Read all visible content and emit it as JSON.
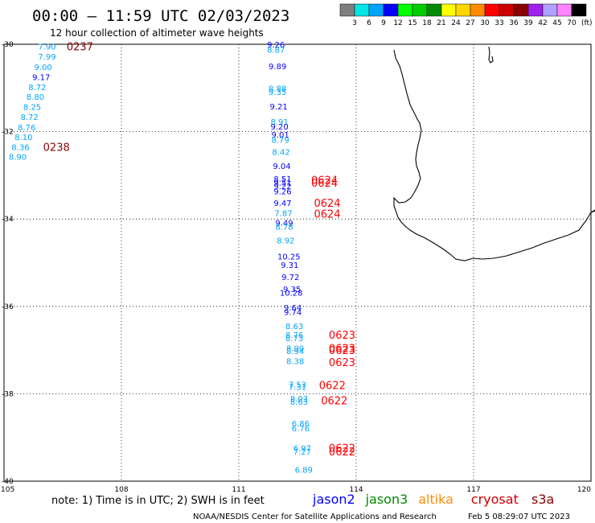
{
  "header": {
    "title": "00:00 – 11:59 UTC 02/03/2023",
    "subtitle": "12 hour collection of altimeter wave heights"
  },
  "color_scale": {
    "colors": [
      "#7f7f7f",
      "#00e5e5",
      "#00a5ff",
      "#0000ff",
      "#00ff00",
      "#00cd00",
      "#008b00",
      "#ffff00",
      "#ffd700",
      "#ff8c00",
      "#ff0000",
      "#cd0000",
      "#8b0000",
      "#a020f0",
      "#b0a0ff",
      "#ff82ff",
      "#000000"
    ],
    "labels": [
      "3",
      "6",
      "9",
      "12",
      "15",
      "18",
      "21",
      "24",
      "27",
      "30",
      "33",
      "36",
      "39",
      "42",
      "45",
      "70"
    ],
    "unit": "(ft)"
  },
  "map": {
    "lat_labels": [
      "-30",
      "-32",
      "-34",
      "-36",
      "-38",
      "-40"
    ],
    "lon_labels": [
      "105",
      "108",
      "111",
      "114",
      "117",
      "120"
    ],
    "lat_values": [
      -30,
      -32,
      -34,
      -36,
      -38,
      -40
    ],
    "lon_values": [
      105,
      108,
      111,
      114,
      117,
      120
    ],
    "extent": {
      "lon_min": 105,
      "lon_max": 120,
      "lat_min": -40,
      "lat_max": -30
    },
    "coast_color": "#000000",
    "grid_color": "#000000"
  },
  "observations": [
    {
      "lon": 106.1,
      "lat": -30.05,
      "v": "7.90",
      "c": "#00a5ff"
    },
    {
      "lon": 106.1,
      "lat": -30.28,
      "v": "7.99",
      "c": "#00a5ff"
    },
    {
      "lon": 106.0,
      "lat": -30.52,
      "v": "9.00",
      "c": "#00a5ff"
    },
    {
      "lon": 105.95,
      "lat": -30.75,
      "v": "9.17",
      "c": "#0000ff"
    },
    {
      "lon": 105.85,
      "lat": -30.98,
      "v": "8.72",
      "c": "#00a5ff"
    },
    {
      "lon": 105.8,
      "lat": -31.2,
      "v": "8.80",
      "c": "#00a5ff"
    },
    {
      "lon": 105.72,
      "lat": -31.43,
      "v": "8.25",
      "c": "#00a5ff"
    },
    {
      "lon": 105.65,
      "lat": -31.66,
      "v": "8.72",
      "c": "#00a5ff"
    },
    {
      "lon": 105.58,
      "lat": -31.9,
      "v": "8.76",
      "c": "#00a5ff"
    },
    {
      "lon": 105.5,
      "lat": -32.12,
      "v": "8.10",
      "c": "#00a5ff"
    },
    {
      "lon": 105.42,
      "lat": -32.35,
      "v": "8.36",
      "c": "#00a5ff"
    },
    {
      "lon": 105.35,
      "lat": -32.57,
      "v": "8.90",
      "c": "#00a5ff"
    },
    {
      "lon": 111.95,
      "lat": -30.0,
      "v": "9.26",
      "c": "#0000ff"
    },
    {
      "lon": 111.95,
      "lat": -30.12,
      "v": "8.87",
      "c": "#00a5ff"
    },
    {
      "lon": 111.99,
      "lat": -30.5,
      "v": "9.89",
      "c": "#0000ff"
    },
    {
      "lon": 111.99,
      "lat": -31.0,
      "v": "8.88",
      "c": "#00a5ff"
    },
    {
      "lon": 111.99,
      "lat": -31.09,
      "v": "9.35",
      "c": "#00a5ff"
    },
    {
      "lon": 112.02,
      "lat": -31.42,
      "v": "9.21",
      "c": "#0000ff"
    },
    {
      "lon": 112.04,
      "lat": -31.77,
      "v": "8.91",
      "c": "#00a5ff"
    },
    {
      "lon": 112.04,
      "lat": -31.88,
      "v": "9.20",
      "c": "#0000ff"
    },
    {
      "lon": 112.06,
      "lat": -32.06,
      "v": "9.01",
      "c": "#0000ff"
    },
    {
      "lon": 112.06,
      "lat": -32.18,
      "v": "8.79",
      "c": "#00a5ff"
    },
    {
      "lon": 112.08,
      "lat": -32.46,
      "v": "8.42",
      "c": "#00a5ff"
    },
    {
      "lon": 112.1,
      "lat": -32.78,
      "v": "9.04",
      "c": "#0000ff"
    },
    {
      "lon": 112.12,
      "lat": -33.08,
      "v": "8.51",
      "c": "#0000ff"
    },
    {
      "lon": 112.12,
      "lat": -33.16,
      "v": "9.51",
      "c": "#0000ff"
    },
    {
      "lon": 112.12,
      "lat": -33.24,
      "v": "9.22",
      "c": "#0000ff"
    },
    {
      "lon": 112.12,
      "lat": -33.36,
      "v": "9.26",
      "c": "#0000ff"
    },
    {
      "lon": 112.12,
      "lat": -33.63,
      "v": "9.47",
      "c": "#0000ff"
    },
    {
      "lon": 112.14,
      "lat": -33.86,
      "v": "7.87",
      "c": "#00a5ff"
    },
    {
      "lon": 112.16,
      "lat": -34.08,
      "v": "9.49",
      "c": "#0000ff"
    },
    {
      "lon": 112.16,
      "lat": -34.17,
      "v": "8.78",
      "c": "#00a5ff"
    },
    {
      "lon": 112.2,
      "lat": -34.48,
      "v": "8.92",
      "c": "#00a5ff"
    },
    {
      "lon": 112.28,
      "lat": -34.85,
      "v": "10.25",
      "c": "#0000ff"
    },
    {
      "lon": 112.3,
      "lat": -35.05,
      "v": "9.31",
      "c": "#0000ff"
    },
    {
      "lon": 112.32,
      "lat": -35.32,
      "v": "9.72",
      "c": "#0000ff"
    },
    {
      "lon": 112.36,
      "lat": -35.6,
      "v": "9.35",
      "c": "#0000ff"
    },
    {
      "lon": 112.34,
      "lat": -35.68,
      "v": "10.28",
      "c": "#0000ff"
    },
    {
      "lon": 112.38,
      "lat": -36.02,
      "v": "9.64",
      "c": "#0000ff"
    },
    {
      "lon": 112.38,
      "lat": -36.12,
      "v": "9.74",
      "c": "#0000ff"
    },
    {
      "lon": 112.42,
      "lat": -36.45,
      "v": "8.63",
      "c": "#00a5ff"
    },
    {
      "lon": 112.42,
      "lat": -36.65,
      "v": "8.76",
      "c": "#00a5ff"
    },
    {
      "lon": 112.42,
      "lat": -36.72,
      "v": "8.73",
      "c": "#00a5ff"
    },
    {
      "lon": 112.44,
      "lat": -36.95,
      "v": "8.90",
      "c": "#00a5ff"
    },
    {
      "lon": 112.44,
      "lat": -37.02,
      "v": "8.94",
      "c": "#00a5ff"
    },
    {
      "lon": 112.44,
      "lat": -37.25,
      "v": "8.38",
      "c": "#00a5ff"
    },
    {
      "lon": 112.5,
      "lat": -37.78,
      "v": "7.53",
      "c": "#00a5ff"
    },
    {
      "lon": 112.5,
      "lat": -37.84,
      "v": "7.31",
      "c": "#00a5ff"
    },
    {
      "lon": 112.54,
      "lat": -38.1,
      "v": "8.03",
      "c": "#00a5ff"
    },
    {
      "lon": 112.54,
      "lat": -38.18,
      "v": "8.63",
      "c": "#00a5ff"
    },
    {
      "lon": 112.58,
      "lat": -38.67,
      "v": "6.86",
      "c": "#00a5ff"
    },
    {
      "lon": 112.58,
      "lat": -38.78,
      "v": "6.76",
      "c": "#00a5ff"
    },
    {
      "lon": 112.62,
      "lat": -39.24,
      "v": "6.97",
      "c": "#00a5ff"
    },
    {
      "lon": 112.62,
      "lat": -39.32,
      "v": "7.27",
      "c": "#00a5ff"
    },
    {
      "lon": 112.66,
      "lat": -39.73,
      "v": "6.89",
      "c": "#00a5ff"
    }
  ],
  "pass_times": [
    {
      "lon": 106.6,
      "lat": -30.05,
      "t": "0237",
      "c": "#8b0000"
    },
    {
      "lon": 106.0,
      "lat": -32.35,
      "t": "0238",
      "c": "#8b0000"
    },
    {
      "lon": 112.85,
      "lat": -33.1,
      "t": "0624",
      "c": "#ff0000"
    },
    {
      "lon": 112.85,
      "lat": -33.17,
      "t": "0624",
      "c": "#ff0000"
    },
    {
      "lon": 112.92,
      "lat": -33.63,
      "t": "0624",
      "c": "#ff0000"
    },
    {
      "lon": 112.92,
      "lat": -33.88,
      "t": "0624",
      "c": "#ff0000"
    },
    {
      "lon": 113.3,
      "lat": -36.65,
      "t": "0623",
      "c": "#ff0000"
    },
    {
      "lon": 113.3,
      "lat": -36.95,
      "t": "0623",
      "c": "#ff0000"
    },
    {
      "lon": 113.3,
      "lat": -37.0,
      "t": "0623",
      "c": "#ff0000"
    },
    {
      "lon": 113.3,
      "lat": -37.27,
      "t": "0623",
      "c": "#ff0000"
    },
    {
      "lon": 113.05,
      "lat": -37.8,
      "t": "0622",
      "c": "#ff0000"
    },
    {
      "lon": 113.1,
      "lat": -38.15,
      "t": "0622",
      "c": "#ff0000"
    },
    {
      "lon": 113.3,
      "lat": -39.24,
      "t": "0622",
      "c": "#ff0000"
    },
    {
      "lon": 113.3,
      "lat": -39.32,
      "t": "0622",
      "c": "#ff0000"
    }
  ],
  "footer": {
    "note": "note: 1) Time is in UTC; 2) SWH is in feet",
    "satellites": [
      {
        "name": "jason2",
        "color": "#0000ff"
      },
      {
        "name": "jason3",
        "color": "#008b00"
      },
      {
        "name": "altika",
        "color": "#ff8c00"
      },
      {
        "name": "cryosat",
        "color": "#cd0000"
      },
      {
        "name": "s3a",
        "color": "#8b0000"
      }
    ],
    "credit": "NOAA/NESDIS Center for Satellite Applications and Research",
    "timestamp": "Feb  5 08:29:07 UTC 2023"
  }
}
